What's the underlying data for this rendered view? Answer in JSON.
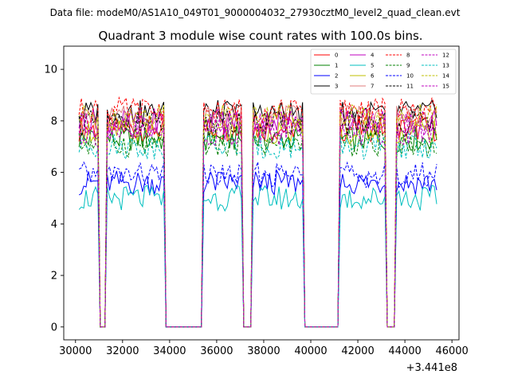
{
  "suptitle": "Data file: modeM0/AS1A10_049T01_9000004032_27930cztM0_level2_quad_clean.evt",
  "chart_data": {
    "type": "line",
    "title": "Quadrant 3 module wise count rates with 100.0s bins.",
    "xlabel": "",
    "ylabel": "",
    "x_offset_label": "+3.441e8",
    "xlim": [
      29500,
      46300
    ],
    "ylim": [
      -0.5,
      10.9
    ],
    "xticks": [
      30000,
      32000,
      34000,
      36000,
      38000,
      40000,
      42000,
      44000,
      46000
    ],
    "xtick_labels": [
      "30000",
      "32000",
      "34000",
      "36000",
      "38000",
      "40000",
      "42000",
      "44000",
      "46000"
    ],
    "yticks": [
      0,
      2,
      4,
      6,
      8,
      10
    ],
    "ytick_labels": [
      "0",
      "2",
      "4",
      "6",
      "8",
      "10"
    ],
    "legend_position": "top-right",
    "segments": [
      {
        "start": 30150,
        "end": 30950
      },
      {
        "start": 31300,
        "end": 33750
      },
      {
        "start": 35400,
        "end": 37050
      },
      {
        "start": 37550,
        "end": 39650
      },
      {
        "start": 41250,
        "end": 43150
      },
      {
        "start": 43650,
        "end": 45400
      }
    ],
    "gap_level": 0,
    "series": [
      {
        "name": "0",
        "color": "#ff0000",
        "dash": "solid",
        "level": 7.7
      },
      {
        "name": "1",
        "color": "#008000",
        "dash": "solid",
        "level": 7.3
      },
      {
        "name": "2",
        "color": "#0000ff",
        "dash": "solid",
        "level": 5.6
      },
      {
        "name": "3",
        "color": "#000000",
        "dash": "solid",
        "level": 8.3
      },
      {
        "name": "4",
        "color": "#bf00bf",
        "dash": "solid",
        "level": 8.0
      },
      {
        "name": "5",
        "color": "#00bfbf",
        "dash": "solid",
        "level": 5.0
      },
      {
        "name": "6",
        "color": "#bfbf00",
        "dash": "solid",
        "level": 7.6
      },
      {
        "name": "7",
        "color": "#e07b7b",
        "dash": "solid",
        "level": 8.1
      },
      {
        "name": "8",
        "color": "#ff0000",
        "dash": "dashed",
        "level": 8.4
      },
      {
        "name": "9",
        "color": "#008000",
        "dash": "dashed",
        "level": 7.1
      },
      {
        "name": "10",
        "color": "#0000ff",
        "dash": "dashed",
        "level": 5.9
      },
      {
        "name": "11",
        "color": "#000000",
        "dash": "dashed",
        "level": 7.9
      },
      {
        "name": "12",
        "color": "#bf00bf",
        "dash": "dashed",
        "level": 7.8
      },
      {
        "name": "13",
        "color": "#00bfbf",
        "dash": "dashed",
        "level": 7.0
      },
      {
        "name": "14",
        "color": "#bfbf00",
        "dash": "dashed",
        "level": 8.2
      },
      {
        "name": "15",
        "color": "#bf00bf",
        "dash": "dashed",
        "level": 7.5
      }
    ]
  }
}
